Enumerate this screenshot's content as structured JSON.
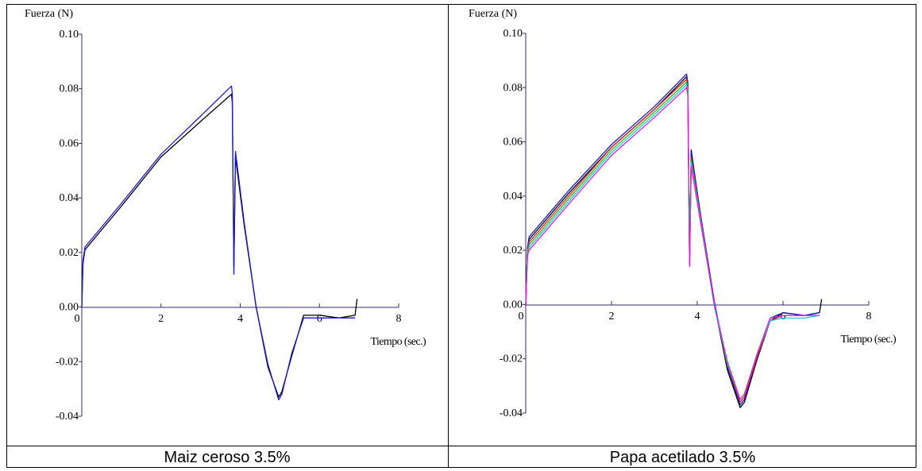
{
  "captions": [
    "Maiz ceroso 3.5%",
    "Papa acetilado 3.5%"
  ],
  "chart_data": [
    {
      "type": "line",
      "title": "Maiz ceroso 3.5%",
      "ylabel": "Fuerza  (N)",
      "xlabel": "Tiempo (sec.)",
      "xlim": [
        0,
        8
      ],
      "ylim": [
        -0.04,
        0.1
      ],
      "x_ticks": [
        "0",
        "2",
        "4",
        "6",
        "8"
      ],
      "y_ticks": [
        "0.10",
        "0.08",
        "0.06",
        "0.04",
        "0.02",
        "0.00",
        "-0.02",
        "-0.04"
      ],
      "grid": false,
      "series": [
        {
          "color": "#000000",
          "x": [
            0,
            0.03,
            0.08,
            1,
            2,
            3,
            3.78,
            3.8,
            3.84,
            3.88,
            4.1,
            4.4,
            4.7,
            4.97,
            5.05,
            5.3,
            5.6,
            6,
            6.5,
            6.9,
            6.95
          ],
          "y": [
            0.0,
            0.016,
            0.021,
            0.037,
            0.055,
            0.068,
            0.078,
            0.075,
            0.015,
            0.055,
            0.03,
            0.0,
            -0.022,
            -0.033,
            -0.031,
            -0.018,
            -0.003,
            -0.003,
            -0.004,
            -0.003,
            0.003
          ]
        },
        {
          "color": "#1a1acc",
          "x": [
            0,
            0.03,
            0.08,
            1,
            2,
            3,
            3.78,
            3.8,
            3.84,
            3.88,
            4.1,
            4.4,
            4.7,
            4.97,
            5.05,
            5.3,
            5.6,
            6,
            6.5,
            6.9
          ],
          "y": [
            0.0,
            0.017,
            0.022,
            0.038,
            0.056,
            0.07,
            0.081,
            0.078,
            0.012,
            0.057,
            0.031,
            0.0,
            -0.021,
            -0.034,
            -0.032,
            -0.017,
            -0.004,
            -0.004,
            -0.004,
            -0.004
          ]
        }
      ]
    },
    {
      "type": "line",
      "title": "Papa acetilado 3.5%",
      "ylabel": "Fuerza  (N)",
      "xlabel": "Tiempo (sec.)",
      "xlim": [
        0,
        8
      ],
      "ylim": [
        -0.04,
        0.1
      ],
      "x_ticks": [
        "0",
        "2",
        "4",
        "6",
        "8"
      ],
      "y_ticks": [
        "0.10",
        "0.08",
        "0.06",
        "0.04",
        "0.02",
        "0.00",
        "-0.02",
        "-0.04"
      ],
      "grid": false,
      "series": [
        {
          "color": "#000000",
          "x": [
            0,
            0.04,
            0.08,
            1,
            2,
            3,
            3.75,
            3.78,
            3.82,
            3.86,
            4.1,
            4.4,
            4.7,
            5.0,
            5.1,
            5.4,
            5.7,
            6,
            6.5,
            6.85,
            6.9
          ],
          "y": [
            0.0,
            0.02,
            0.024,
            0.041,
            0.058,
            0.072,
            0.084,
            0.081,
            0.015,
            0.057,
            0.03,
            0.0,
            -0.024,
            -0.038,
            -0.036,
            -0.02,
            -0.006,
            -0.003,
            -0.004,
            -0.003,
            0.002
          ]
        },
        {
          "color": "#1a1acc",
          "x": [
            0,
            0.04,
            0.08,
            1,
            2,
            3,
            3.75,
            3.78,
            3.82,
            3.86,
            4.1,
            4.4,
            4.7,
            5.0,
            5.1,
            5.4,
            5.7,
            6,
            6.5,
            6.85
          ],
          "y": [
            0.0,
            0.021,
            0.025,
            0.042,
            0.059,
            0.073,
            0.085,
            0.082,
            0.016,
            0.056,
            0.031,
            0.001,
            -0.023,
            -0.037,
            -0.035,
            -0.019,
            -0.005,
            -0.003,
            -0.004,
            -0.003
          ]
        },
        {
          "color": "#e02020",
          "x": [
            0,
            0.04,
            0.08,
            1,
            2,
            3,
            3.75,
            3.78,
            3.82,
            3.86,
            4.1,
            4.4,
            4.7,
            5.0,
            5.1,
            5.4,
            5.7,
            6,
            6.5,
            6.85
          ],
          "y": [
            0.0,
            0.02,
            0.023,
            0.04,
            0.058,
            0.072,
            0.083,
            0.08,
            0.017,
            0.054,
            0.03,
            0.0,
            -0.022,
            -0.036,
            -0.034,
            -0.019,
            -0.006,
            -0.004,
            -0.004,
            -0.004
          ]
        },
        {
          "color": "#20c020",
          "x": [
            0,
            0.04,
            0.08,
            1,
            2,
            3,
            3.75,
            3.78,
            3.82,
            3.86,
            4.1,
            4.4,
            4.7,
            5.0,
            5.1,
            5.4,
            5.7,
            6,
            6.5,
            6.85
          ],
          "y": [
            0.0,
            0.019,
            0.022,
            0.039,
            0.057,
            0.071,
            0.082,
            0.079,
            0.018,
            0.053,
            0.029,
            0.0,
            -0.022,
            -0.035,
            -0.033,
            -0.018,
            -0.005,
            -0.004,
            -0.004,
            -0.004
          ]
        },
        {
          "color": "#20c8d8",
          "x": [
            0,
            0.04,
            0.08,
            1,
            2,
            3,
            3.75,
            3.78,
            3.82,
            3.86,
            4.1,
            4.4,
            4.7,
            5.0,
            5.1,
            5.4,
            5.7,
            6,
            6.5,
            6.85
          ],
          "y": [
            0.0,
            0.018,
            0.021,
            0.038,
            0.056,
            0.07,
            0.081,
            0.078,
            0.019,
            0.052,
            0.029,
            -0.001,
            -0.021,
            -0.035,
            -0.033,
            -0.018,
            -0.006,
            -0.005,
            -0.005,
            -0.004
          ]
        },
        {
          "color": "#e020e0",
          "x": [
            0,
            0.04,
            0.08,
            1,
            2,
            3,
            3.75,
            3.78,
            3.82,
            3.86,
            4.1,
            4.4,
            4.7,
            5.0,
            5.1,
            5.4,
            5.7,
            6,
            6.5,
            6.85
          ],
          "y": [
            0.0,
            0.018,
            0.02,
            0.037,
            0.055,
            0.069,
            0.08,
            0.077,
            0.014,
            0.051,
            0.028,
            0.0,
            -0.021,
            -0.035,
            -0.033,
            -0.018,
            -0.005,
            -0.004,
            -0.004,
            -0.004
          ]
        }
      ]
    }
  ]
}
